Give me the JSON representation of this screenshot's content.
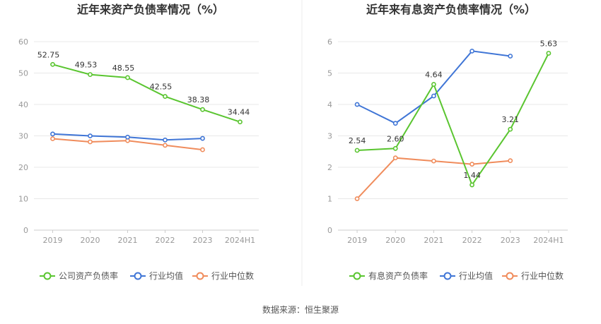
{
  "source_text": "数据来源：恒生聚源",
  "chart_data": [
    {
      "type": "line",
      "title": "近年来资产负债率情况（%）",
      "categories": [
        "2019",
        "2020",
        "2021",
        "2022",
        "2023",
        "2024H1"
      ],
      "ylim": [
        0,
        60
      ],
      "yticks": [
        0,
        10,
        20,
        30,
        40,
        50,
        60
      ],
      "grid": true,
      "legend_position": "bottom",
      "series": [
        {
          "name": "公司资产负债率",
          "color": "#5ac530",
          "values": [
            52.75,
            49.53,
            48.55,
            42.55,
            38.38,
            34.44
          ],
          "labels": [
            "52.75",
            "49.53",
            "48.55",
            "42.55",
            "38.38",
            "34.44"
          ]
        },
        {
          "name": "行业均值",
          "color": "#3f75d6",
          "values": [
            30.6,
            30.0,
            29.6,
            28.7,
            29.2,
            null
          ]
        },
        {
          "name": "行业中位数",
          "color": "#f08c5c",
          "values": [
            29.1,
            28.1,
            28.5,
            27.0,
            25.6,
            null
          ]
        }
      ]
    },
    {
      "type": "line",
      "title": "近年来有息资产负债率情况（%）",
      "categories": [
        "2019",
        "2020",
        "2021",
        "2022",
        "2023",
        "2024H1"
      ],
      "ylim": [
        0,
        6
      ],
      "yticks": [
        0,
        1,
        2,
        3,
        4,
        5,
        6
      ],
      "grid": true,
      "legend_position": "bottom",
      "series": [
        {
          "name": "有息资产负债率",
          "color": "#5ac530",
          "values": [
            2.54,
            2.6,
            4.64,
            1.44,
            3.21,
            5.63
          ],
          "labels": [
            "2.54",
            "2.60",
            "4.64",
            "1.44",
            "3.21",
            "5.63"
          ]
        },
        {
          "name": "行业均值",
          "color": "#3f75d6",
          "values": [
            4.0,
            3.4,
            4.27,
            5.7,
            5.54,
            null
          ]
        },
        {
          "name": "行业中位数",
          "color": "#f08c5c",
          "values": [
            1.0,
            2.3,
            2.2,
            2.1,
            2.21,
            null
          ]
        }
      ]
    }
  ]
}
